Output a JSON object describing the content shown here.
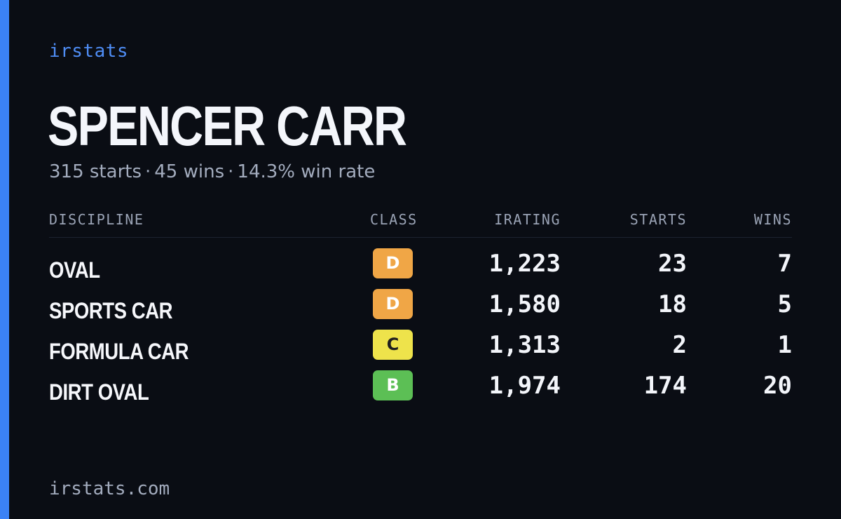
{
  "colors": {
    "background": "#0a0d14",
    "accent": "#3b82f6",
    "brand": "#4f8df5",
    "muted": "#a3acbe"
  },
  "brand": "irstats",
  "driver": {
    "name": "SPENCER CARR",
    "summary": {
      "starts": "315 starts",
      "wins": "45 wins",
      "win_rate": "14.3% win rate",
      "separator": "·"
    }
  },
  "table": {
    "headers": {
      "discipline": "DISCIPLINE",
      "class": "CLASS",
      "irating": "IRATING",
      "starts": "STARTS",
      "wins": "WINS"
    },
    "rows": [
      {
        "discipline": "OVAL",
        "class": "D",
        "class_color": "#f0a646",
        "class_text_color": "#ffffff",
        "irating": "1,223",
        "starts": "23",
        "wins": "7"
      },
      {
        "discipline": "SPORTS CAR",
        "class": "D",
        "class_color": "#f0a646",
        "class_text_color": "#ffffff",
        "irating": "1,580",
        "starts": "18",
        "wins": "5"
      },
      {
        "discipline": "FORMULA CAR",
        "class": "C",
        "class_color": "#eee34b",
        "class_text_color": "#1e1e1e",
        "irating": "1,313",
        "starts": "2",
        "wins": "1"
      },
      {
        "discipline": "DIRT OVAL",
        "class": "B",
        "class_color": "#5cbf55",
        "class_text_color": "#ffffff",
        "irating": "1,974",
        "starts": "174",
        "wins": "20"
      }
    ]
  },
  "footer": {
    "url": "irstats.com"
  }
}
